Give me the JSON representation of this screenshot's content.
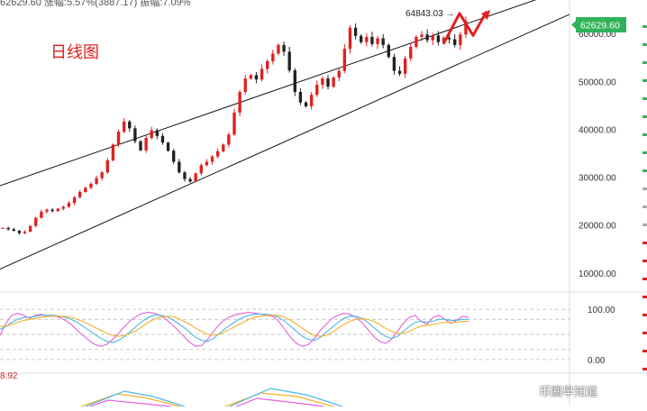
{
  "header": {
    "top_strip": "62629.60  涨幅:5.57%(3887.17)  振幅:7.09%"
  },
  "chart_label": "日线图",
  "peak_annotation": "64843.03 →",
  "current_price_badge": "62629.60",
  "oscillator_value": "8.92",
  "watermark": "币圈早知道",
  "colors": {
    "up": "#e02020",
    "down": "#222222",
    "badge": "#2fb35a",
    "k_line": "#e65fd6",
    "d_line": "#4cb8e6",
    "j_line": "#f2b02a",
    "signal": "#63c463"
  },
  "chart_data": {
    "type": "candlestick",
    "title": "日线图",
    "y_ticks": [
      {
        "value": 60000,
        "label": "60000.00"
      },
      {
        "value": 50000,
        "label": "50000.00"
      },
      {
        "value": 40000,
        "label": "40000.00"
      },
      {
        "value": 30000,
        "label": "30000.00"
      },
      {
        "value": 20000,
        "label": "20000.00"
      },
      {
        "value": 10000,
        "label": "10000.00"
      }
    ],
    "ylim": [
      6000,
      67000
    ],
    "osc_ticks": [
      {
        "value": 100,
        "label": "100.00"
      },
      {
        "value": 0,
        "label": "0.00"
      }
    ],
    "osc_lim": [
      -20,
      120
    ],
    "peak_value": 64843.03,
    "current_price": 62629.6,
    "channel": {
      "upper": [
        [
          0,
          28200
        ],
        [
          1,
          69500
        ]
      ],
      "lower": [
        [
          0,
          10800
        ],
        [
          1,
          64000
        ]
      ]
    },
    "closes": [
      19400,
      19100,
      18800,
      18300,
      18600,
      19800,
      21500,
      22800,
      23200,
      22900,
      23400,
      23800,
      24600,
      25800,
      26900,
      27800,
      28600,
      29800,
      31000,
      33500,
      36800,
      39500,
      41600,
      40200,
      37500,
      35600,
      38200,
      39800,
      38600,
      37200,
      35500,
      33200,
      31000,
      29600,
      29100,
      30800,
      32500,
      33200,
      34300,
      35400,
      36800,
      38900,
      43500,
      47800,
      50600,
      51300,
      50400,
      52600,
      54200,
      55800,
      57600,
      56200,
      52300,
      47800,
      45600,
      44800,
      47200,
      49300,
      50600,
      48900,
      50800,
      52200,
      56800,
      61200,
      59500,
      58200,
      59300,
      57800,
      59000,
      57600,
      55100,
      52200,
      51600,
      54800,
      57200,
      59300,
      59800,
      58600,
      59600,
      58200,
      59100,
      58800,
      57600,
      59800,
      62600
    ],
    "kdj": [
      [
        48,
        72,
        88,
        92,
        88,
        82,
        88,
        90,
        86,
        88,
        84,
        78,
        70,
        58,
        48,
        38,
        30,
        26,
        30,
        40,
        52,
        66,
        78,
        86,
        92,
        94,
        92,
        88,
        80,
        70,
        58,
        46,
        34,
        26,
        28,
        40,
        56,
        70,
        80,
        86,
        90,
        92,
        94,
        92,
        90,
        88,
        86,
        76,
        60,
        44,
        32,
        26,
        30,
        42,
        58,
        70,
        82,
        88,
        92,
        90,
        84,
        74,
        60,
        46,
        36,
        32,
        40,
        56,
        72,
        84,
        88,
        76,
        70,
        84,
        88,
        80,
        72,
        78,
        86,
        84
      ],
      [
        60,
        66,
        74,
        80,
        84,
        84,
        86,
        88,
        88,
        88,
        86,
        84,
        80,
        74,
        66,
        58,
        50,
        42,
        36,
        34,
        38,
        46,
        56,
        66,
        76,
        84,
        88,
        88,
        86,
        80,
        72,
        64,
        54,
        44,
        38,
        36,
        42,
        52,
        62,
        70,
        78,
        84,
        88,
        90,
        90,
        90,
        88,
        84,
        76,
        66,
        56,
        46,
        40,
        38,
        44,
        54,
        64,
        74,
        82,
        86,
        86,
        82,
        74,
        64,
        54,
        46,
        42,
        46,
        56,
        66,
        74,
        76,
        74,
        76,
        80,
        80,
        78,
        78,
        80,
        80
      ],
      [
        66,
        66,
        70,
        74,
        78,
        80,
        82,
        84,
        86,
        86,
        86,
        86,
        84,
        80,
        76,
        70,
        64,
        58,
        52,
        48,
        46,
        48,
        52,
        58,
        66,
        74,
        80,
        84,
        86,
        86,
        82,
        76,
        70,
        62,
        56,
        50,
        48,
        50,
        56,
        62,
        68,
        74,
        80,
        84,
        86,
        88,
        88,
        88,
        84,
        78,
        70,
        62,
        54,
        48,
        46,
        48,
        54,
        62,
        70,
        76,
        80,
        82,
        80,
        76,
        70,
        62,
        56,
        52,
        52,
        56,
        62,
        66,
        68,
        70,
        72,
        74,
        74,
        74,
        76,
        76
      ]
    ]
  }
}
